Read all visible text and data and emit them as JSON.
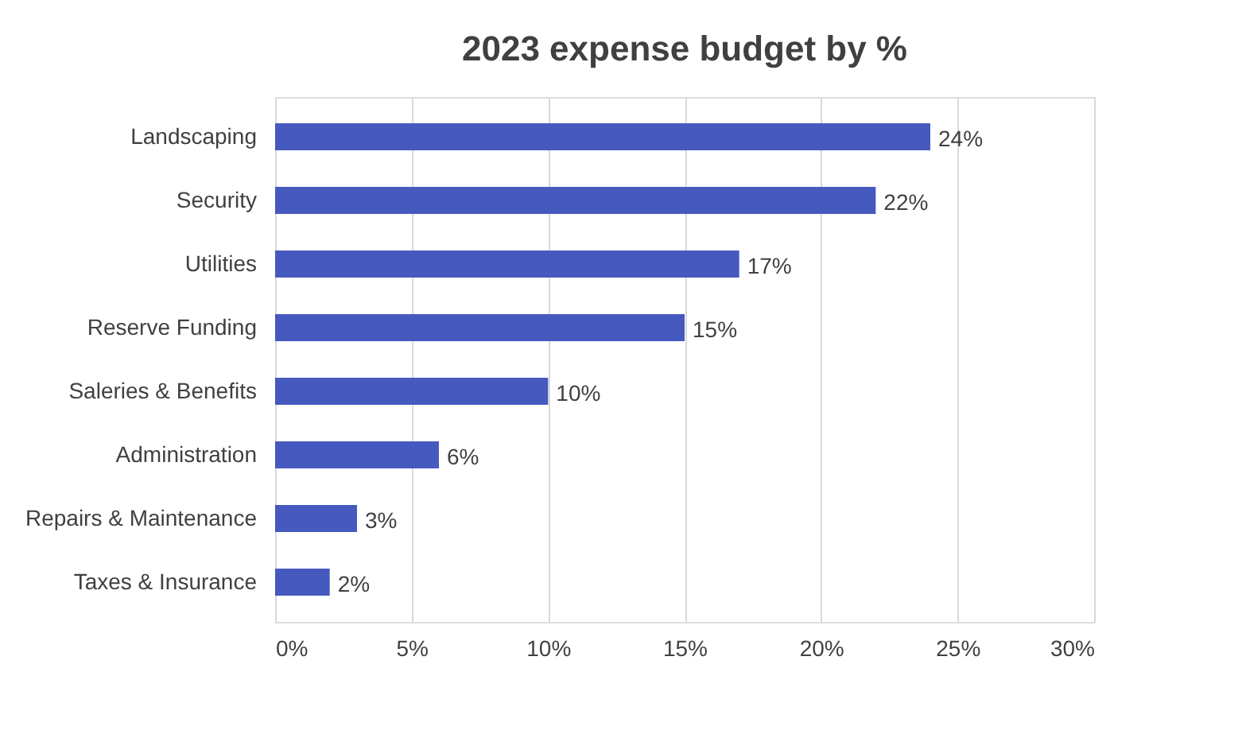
{
  "chart_data": {
    "type": "bar",
    "orientation": "horizontal",
    "title": "2023 expense budget by %",
    "categories": [
      "Landscaping",
      "Security",
      "Utilities",
      "Reserve Funding",
      "Saleries & Benefits",
      "Administration",
      "Repairs & Maintenance",
      "Taxes & Insurance"
    ],
    "values": [
      24,
      22,
      17,
      15,
      10,
      6,
      3,
      2
    ],
    "value_labels": [
      "24%",
      "22%",
      "17%",
      "15%",
      "10%",
      "6%",
      "3%",
      "2%"
    ],
    "color": "#4559bf",
    "xlim": [
      0,
      30
    ],
    "xticks": [
      {
        "value": 0,
        "label": "0%"
      },
      {
        "value": 5,
        "label": "5%"
      },
      {
        "value": 10,
        "label": "10%"
      },
      {
        "value": 15,
        "label": "15%"
      },
      {
        "value": 20,
        "label": "20%"
      },
      {
        "value": 25,
        "label": "25%"
      },
      {
        "value": 30,
        "label": "30%"
      }
    ],
    "grid": "x"
  }
}
